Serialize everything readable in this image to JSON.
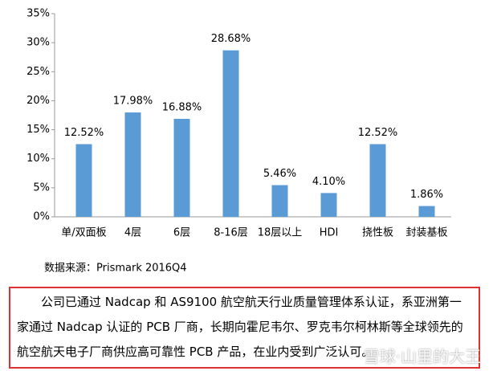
{
  "chart_data": {
    "type": "bar",
    "categories": [
      "单/双面板",
      "4层",
      "6层",
      "8-16层",
      "18层以上",
      "HDI",
      "挠性板",
      "封装基板"
    ],
    "values": [
      12.52,
      17.98,
      16.88,
      28.68,
      5.46,
      4.1,
      12.52,
      1.86
    ],
    "value_labels": [
      "12.52%",
      "17.98%",
      "16.88%",
      "28.68%",
      "5.46%",
      "4.10%",
      "12.52%",
      "1.86%"
    ],
    "color": "#5b9bd5",
    "ylim": [
      0,
      35
    ],
    "yticks": [
      {
        "value": 0,
        "label": "0%"
      },
      {
        "value": 5,
        "label": "5%"
      },
      {
        "value": 10,
        "label": "10%"
      },
      {
        "value": 15,
        "label": "15%"
      },
      {
        "value": 20,
        "label": "20%"
      },
      {
        "value": 25,
        "label": "25%"
      },
      {
        "value": 30,
        "label": "30%"
      },
      {
        "value": 35,
        "label": "35%"
      }
    ],
    "source": "数据来源：Prismark 2016Q4"
  },
  "paragraph": "公司已通过 Nadcap 和 AS9100 航空航天行业质量管理体系认证，系亚洲第一家通过 Nadcap 认证的 PCB 厂商，长期向霍尼韦尔、罗克韦尔柯林斯等全球领先的航空航天电子厂商供应高可靠性 PCB 产品，在业内受到广泛认可。",
  "watermark": "雪球·山里的大王"
}
